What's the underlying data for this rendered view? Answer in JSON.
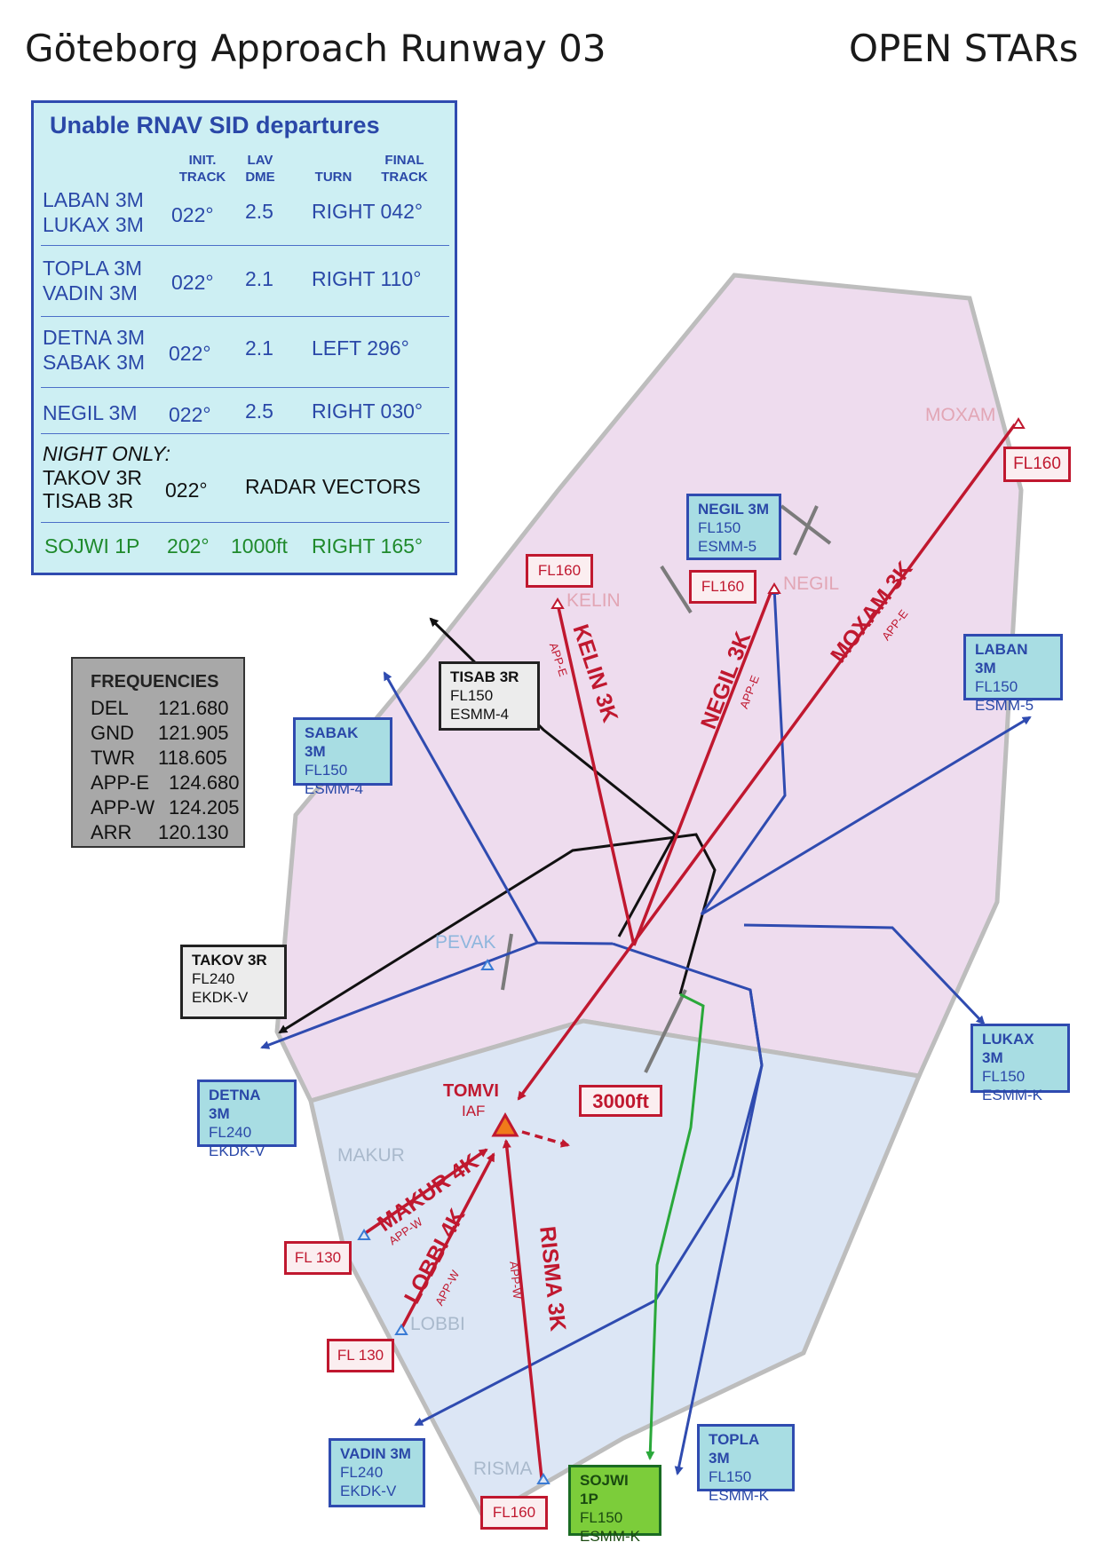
{
  "header": {
    "title": "Göteborg  Approach Runway 03",
    "right_title": "OPEN STARs"
  },
  "sid_table": {
    "title": "Unable RNAV SID departures",
    "headers": {
      "init_track": "INIT.\nTRACK",
      "lav_dme": "LAV\nDME",
      "turn": "TURN",
      "final_track": "FINAL\nTRACK"
    },
    "rows": [
      {
        "names": "LABAN 3M\nLUKAX 3M",
        "track": "022°",
        "dme": "2.5",
        "turn": "RIGHT 042°"
      },
      {
        "names": "TOPLA 3M\nVADIN 3M",
        "track": "022°",
        "dme": "2.1",
        "turn": "RIGHT 110°"
      },
      {
        "names": "DETNA 3M\nSABAK 3M",
        "track": "022°",
        "dme": "2.1",
        "turn": "LEFT  296°"
      },
      {
        "names": "NEGIL 3M",
        "track": "022°",
        "dme": "2.5",
        "turn": "RIGHT 030°"
      }
    ],
    "night": {
      "label": "NIGHT ONLY:",
      "names": "TAKOV 3R\nTISAB 3R",
      "track": "022°",
      "note": "RADAR VECTORS"
    },
    "sojwi": {
      "name": "SOJWI 1P",
      "track": "202°",
      "alt": "1000ft",
      "turn": "RIGHT 165°"
    }
  },
  "frequencies": {
    "title": "FREQUENCIES",
    "rows": [
      {
        "name": "DEL",
        "value": "121.680"
      },
      {
        "name": "GND",
        "value": "121.905"
      },
      {
        "name": "TWR",
        "value": "118.605"
      },
      {
        "name": "APP-E",
        "value": "124.680"
      },
      {
        "name": "APP-W",
        "value": "124.205"
      },
      {
        "name": "ARR",
        "value": "120.130"
      }
    ]
  },
  "exit_boxes": {
    "negil": {
      "name": "NEGIL 3M",
      "level": "FL150",
      "sector": "ESMM-5"
    },
    "laban": {
      "name": "LABAN 3M",
      "level": "FL150",
      "sector": "ESMM-5"
    },
    "sabak": {
      "name": "SABAK 3M",
      "level": "FL150",
      "sector": "ESMM-4"
    },
    "tisab": {
      "name": "TISAB 3R",
      "level": "FL150",
      "sector": "ESMM-4"
    },
    "takov": {
      "name": "TAKOV 3R",
      "level": "FL240",
      "sector": "EKDK-V"
    },
    "detna": {
      "name": "DETNA 3M",
      "level": "FL240",
      "sector": "EKDK-V"
    },
    "lukax": {
      "name": "LUKAX 3M",
      "level": "FL150",
      "sector": "ESMM-K"
    },
    "vadin": {
      "name": "VADIN 3M",
      "level": "FL240",
      "sector": "EKDK-V"
    },
    "topla": {
      "name": "TOPLA 3M",
      "level": "FL150",
      "sector": "ESMM-K"
    },
    "sojwi": {
      "name": "SOJWI 1P",
      "level": "FL150",
      "sector": "ESMM-K"
    }
  },
  "levels": {
    "moxam": "FL160",
    "kelin": "FL160",
    "negil": "FL160",
    "makur": "FL 130",
    "lobbi": "FL 130",
    "risma": "FL160",
    "min_alt": "3000ft"
  },
  "waypoints": {
    "moxam": "MOXAM",
    "kelin": "KELIN",
    "negil": "NEGIL",
    "pevak": "PEVAK",
    "makur": "MAKUR",
    "lobbi": "LOBBI",
    "risma": "RISMA",
    "tomvi": "TOMVI",
    "iaf": "IAF"
  },
  "stars": {
    "kelin": {
      "name": "KELIN 3K",
      "freq": "APP-E"
    },
    "negil": {
      "name": "NEGIL 3K",
      "freq": "APP-E"
    },
    "moxam": {
      "name": "MOXAM 3K",
      "freq": "APP-E"
    },
    "makur": {
      "name": "MAKUR 4K",
      "freq": "APP-W"
    },
    "lobbi": {
      "name": "LOBBI 4K",
      "freq": "APP-W"
    },
    "risma": {
      "name": "RISMA 3K",
      "freq": "APP-W"
    }
  },
  "colors": {
    "star_red": "#c0182f",
    "sid_blue": "#2f4bb0",
    "night_black": "#111111",
    "sojwi_green": "#2aa83a",
    "east_sector": "#eedcee",
    "west_sector": "#dce6f5",
    "boundary": "#bdbdbd"
  }
}
